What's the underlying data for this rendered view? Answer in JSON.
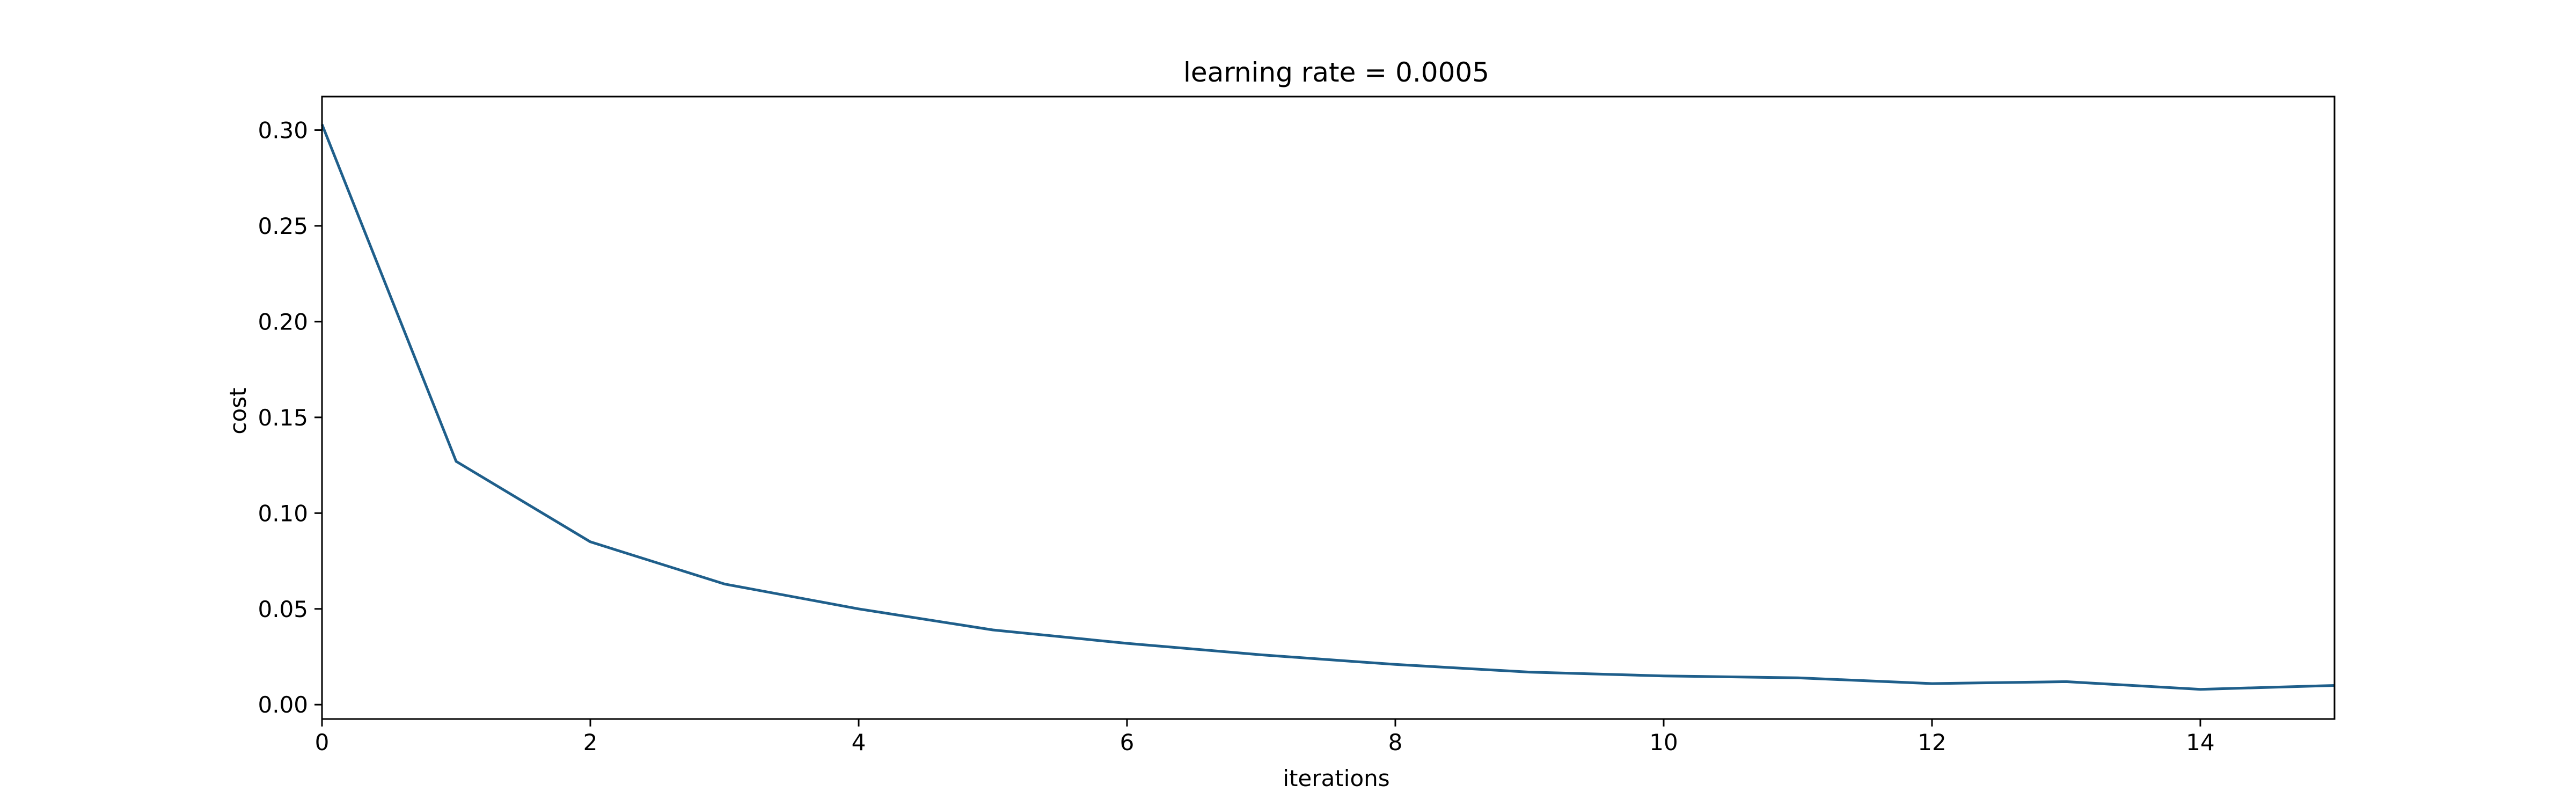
{
  "chart_data": {
    "type": "line",
    "title": "learning rate = 0.0005",
    "xlabel": "iterations",
    "ylabel": "cost",
    "xlim": [
      0,
      15
    ],
    "ylim": [
      -0.0075,
      0.3175
    ],
    "xticks": [
      0,
      2,
      4,
      6,
      8,
      10,
      12,
      14
    ],
    "yticks": [
      0.0,
      0.05,
      0.1,
      0.15,
      0.2,
      0.25,
      0.3
    ],
    "ytick_labels": [
      "0.00",
      "0.05",
      "0.10",
      "0.15",
      "0.20",
      "0.25",
      "0.30"
    ],
    "grid": false,
    "series": [
      {
        "color": "#1f5f8b",
        "x": [
          0,
          1,
          2,
          3,
          4,
          5,
          6,
          7,
          8,
          9,
          10,
          11,
          12,
          13,
          14,
          15
        ],
        "values": [
          0.303,
          0.127,
          0.085,
          0.063,
          0.05,
          0.039,
          0.032,
          0.026,
          0.021,
          0.017,
          0.015,
          0.014,
          0.011,
          0.012,
          0.008,
          0.01
        ]
      }
    ]
  }
}
